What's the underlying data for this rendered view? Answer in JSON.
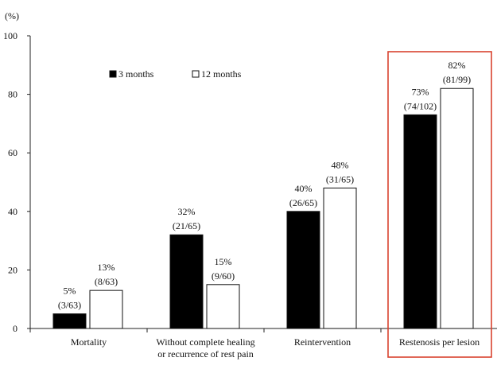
{
  "chart_data": {
    "type": "bar",
    "y_unit_label": "(%)",
    "ylim": [
      0,
      100
    ],
    "yticks": [
      0,
      20,
      40,
      60,
      80,
      100
    ],
    "grid": false,
    "legend_position": "top-left",
    "categories": [
      {
        "lines": [
          "Mortality"
        ]
      },
      {
        "lines": [
          "Without complete healing",
          "or recurrence of rest pain"
        ]
      },
      {
        "lines": [
          "Reintervention"
        ]
      },
      {
        "lines": [
          "Restenosis per lesion"
        ]
      }
    ],
    "series": [
      {
        "name": "3 months",
        "color": "#000000",
        "values": [
          5,
          32,
          40,
          73
        ],
        "labels": [
          "5%",
          "32%",
          "40%",
          "73%"
        ],
        "counts": [
          "(3/63)",
          "(21/65)",
          "(26/65)",
          "(74/102)"
        ]
      },
      {
        "name": "12 months",
        "color": "#ffffff",
        "values": [
          13,
          15,
          48,
          82
        ],
        "labels": [
          "13%",
          "15%",
          "48%",
          "82%"
        ],
        "counts": [
          "(8/63)",
          "(9/60)",
          "(31/65)",
          "(81/99)"
        ]
      }
    ],
    "highlight": {
      "category_index": 3,
      "color": "#d9432f"
    }
  }
}
